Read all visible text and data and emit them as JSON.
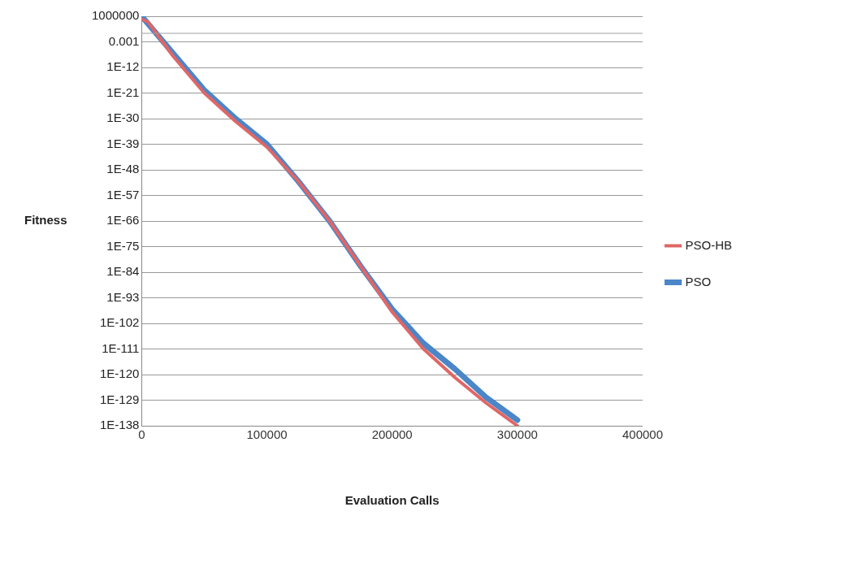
{
  "chart_data": {
    "type": "line",
    "xlabel": "Evaluation Calls",
    "ylabel": "Fitness",
    "log": "y",
    "grid": "y",
    "legend": "right",
    "marker": "none",
    "line_style": "solid",
    "xlim": [
      0,
      400000
    ],
    "xticks": [
      0,
      100000,
      200000,
      300000,
      400000
    ],
    "ylim": [
      1e-138,
      1000000
    ],
    "yticks": [
      1000000,
      0.001,
      {
        "value": 1e-12,
        "label": "1E-12"
      },
      {
        "value": 1e-21,
        "label": "1E-21"
      },
      {
        "value": 1e-30,
        "label": "1E-30"
      },
      {
        "value": 1e-39,
        "label": "1E-39"
      },
      {
        "value": 1e-48,
        "label": "1E-48"
      },
      {
        "value": 1e-57,
        "label": "1E-57"
      },
      {
        "value": 1e-66,
        "label": "1E-66"
      },
      {
        "value": 1e-75,
        "label": "1E-75"
      },
      {
        "value": 1e-84,
        "label": "1E-84"
      },
      {
        "value": 1e-93,
        "label": "1E-93"
      },
      {
        "value": 1e-102,
        "label": "1E-102"
      },
      {
        "value": 1e-111,
        "label": "1E-111"
      },
      {
        "value": 1e-120,
        "label": "1E-120"
      },
      {
        "value": 1e-129,
        "label": "1E-129"
      },
      {
        "value": 1e-138,
        "label": "1E-138"
      }
    ],
    "ref_lines": [
      {
        "axis": "y",
        "value": 1,
        "color": "#a0a0a0"
      }
    ],
    "series": [
      {
        "name": "PSO-HB",
        "color": "#e06666",
        "x": [
          0,
          5000,
          25000,
          50000,
          75000,
          100000,
          125000,
          150000,
          175000,
          200000,
          225000,
          250000,
          275000,
          300000
        ],
        "values": [
          100000.0,
          10000.0,
          1e-08,
          1e-21,
          1e-31,
          1e-40,
          1e-52,
          1e-66,
          1e-82,
          1e-98,
          1e-111,
          1e-121,
          1e-130,
          1e-138
        ]
      },
      {
        "name": "PSO",
        "color": "#4a86c8",
        "x": [
          0,
          25000,
          50000,
          75000,
          100000,
          125000,
          150000,
          175000,
          200000,
          225000,
          250000,
          275000,
          300000
        ],
        "values": [
          1000000.0,
          1e-07,
          1e-20,
          1e-30,
          1e-39,
          1e-52,
          1e-66,
          1e-82,
          1e-97,
          1e-109,
          1e-118,
          1e-128,
          1e-136
        ]
      }
    ]
  }
}
